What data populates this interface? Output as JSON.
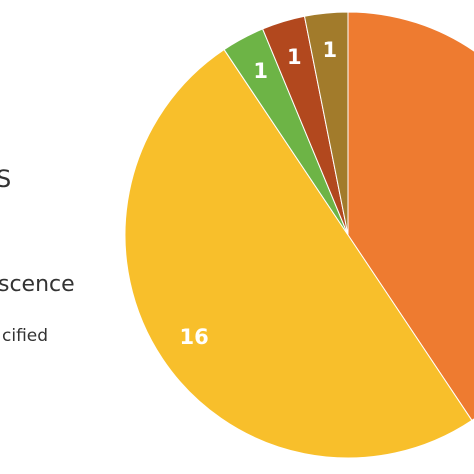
{
  "chart_data": {
    "type": "pie",
    "categories": [
      null,
      null,
      null,
      null,
      null
    ],
    "values": [
      13,
      16,
      1,
      1,
      1
    ],
    "colors": [
      "#ee7b30",
      "#f8bf2b",
      "#6db446",
      "#b2481e",
      "#a27b2b"
    ],
    "legend": [
      "S",
      "scence",
      "cified"
    ]
  }
}
